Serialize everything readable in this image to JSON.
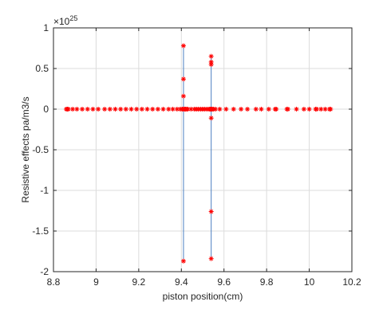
{
  "chart_data": {
    "type": "scatter",
    "title": "",
    "xlabel": "piston position(cm)",
    "ylabel": "Resistive effects pa/m3/s",
    "y_multiplier_label": "×10",
    "y_multiplier_exponent": "25",
    "xlim": [
      8.8,
      10.2
    ],
    "ylim": [
      -2,
      1
    ],
    "xticks": [
      8.8,
      9,
      9.2,
      9.4,
      9.6,
      9.8,
      10,
      10.2
    ],
    "xtick_labels": [
      "8.8",
      "9",
      "9.2",
      "9.4",
      "9.6",
      "9.8",
      "10",
      "10.2"
    ],
    "yticks": [
      -2,
      -1.5,
      -1,
      -0.5,
      0,
      0.5,
      1
    ],
    "ytick_labels": [
      "-2",
      "-1.5",
      "-1",
      "-0.5",
      "0",
      "0.5",
      "1"
    ],
    "grid": true,
    "marker_color": "#ff0000",
    "line_color": "#4a7fc1",
    "series": [
      {
        "marker": "asterisk",
        "x": [
          8.86,
          8.865,
          8.87,
          8.89,
          8.91,
          8.935,
          8.96,
          8.985,
          9.01,
          9.04,
          9.065,
          9.09,
          9.115,
          9.14,
          9.165,
          9.19,
          9.215,
          9.24,
          9.265,
          9.29,
          9.315,
          9.34,
          9.36,
          9.38,
          9.395,
          9.405,
          9.41,
          9.41,
          9.41,
          9.41,
          9.41,
          9.41,
          9.415,
          9.42,
          9.425,
          9.43,
          9.445,
          9.46,
          9.47,
          9.48,
          9.49,
          9.5,
          9.51,
          9.52,
          9.53,
          9.535,
          9.54,
          9.54,
          9.54,
          9.54,
          9.54,
          9.54,
          9.54,
          9.54,
          9.545,
          9.55,
          9.56,
          9.58,
          9.61,
          9.645,
          9.68,
          9.71,
          9.75,
          9.775,
          9.81,
          9.84,
          9.845,
          9.895,
          9.9,
          9.94,
          9.975,
          10.0,
          10.03,
          10.035,
          10.055,
          10.075,
          10.095,
          10.1
        ],
        "y": [
          0,
          0,
          0,
          0,
          0,
          0,
          0,
          0,
          0,
          0,
          0,
          0,
          0,
          0,
          0,
          0,
          0,
          0,
          0,
          0,
          0,
          0,
          0,
          0,
          0,
          0,
          0,
          0.78,
          0.37,
          0.16,
          -1.87,
          0,
          0,
          0,
          0,
          0,
          0,
          0,
          0,
          0,
          0,
          0,
          0,
          0,
          0,
          0,
          0,
          0.65,
          0.58,
          0.55,
          -0.11,
          -1.26,
          -1.84,
          0,
          0,
          0,
          0,
          0,
          0,
          0,
          0,
          0,
          0,
          0,
          0,
          0,
          0,
          0,
          0,
          0,
          0,
          0,
          0,
          0,
          0,
          0,
          0,
          0
        ]
      }
    ],
    "connector_segments": [
      {
        "x": 9.41,
        "y_from": 0.78,
        "y_to": -1.87
      },
      {
        "x": 9.54,
        "y_from": 0.65,
        "y_to": -1.84
      }
    ]
  }
}
